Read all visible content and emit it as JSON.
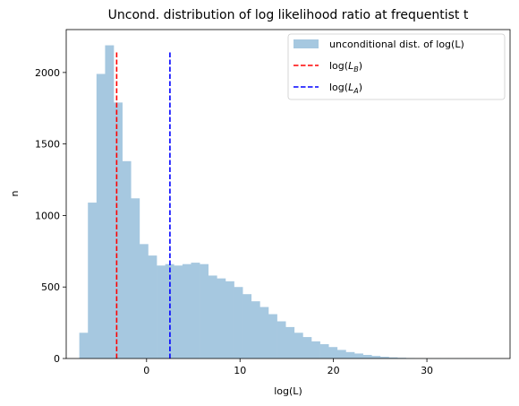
{
  "chart_data": {
    "type": "bar",
    "title": "Uncond. distribution of log likelihood ratio at frequentist  t",
    "xlabel": "log(L)",
    "ylabel": "n",
    "xlim": [
      -8.6,
      38.9
    ],
    "ylim": [
      0,
      2300
    ],
    "xticks": [
      0,
      10,
      20,
      30
    ],
    "yticks": [
      0,
      500,
      1000,
      1500,
      2000
    ],
    "grid": false,
    "legend_position": "top-right",
    "histogram": {
      "name": "unconditional dist. of log(L)",
      "color": "#a6c8e0",
      "bin_width": 0.92,
      "bin_start": -7.2,
      "counts": [
        180,
        1090,
        1990,
        2190,
        1790,
        1380,
        1120,
        800,
        720,
        650,
        660,
        650,
        660,
        670,
        660,
        580,
        560,
        540,
        500,
        450,
        400,
        360,
        310,
        260,
        220,
        180,
        150,
        120,
        100,
        80,
        60,
        45,
        35,
        25,
        18,
        12,
        8,
        5,
        3,
        2,
        1,
        1,
        1,
        1,
        1,
        1,
        1,
        1,
        1
      ]
    },
    "vlines": [
      {
        "name": "log(L_B)",
        "label_main": "log(",
        "label_var": "L",
        "label_sub": "B",
        "label_end": ")",
        "x": -3.2,
        "ymax": 2150,
        "color": "#ff0000"
      },
      {
        "name": "log(L_A)",
        "label_main": "log(",
        "label_var": "L",
        "label_sub": "A",
        "label_end": ")",
        "x": 2.5,
        "ymax": 2150,
        "color": "#0000ff"
      }
    ]
  }
}
